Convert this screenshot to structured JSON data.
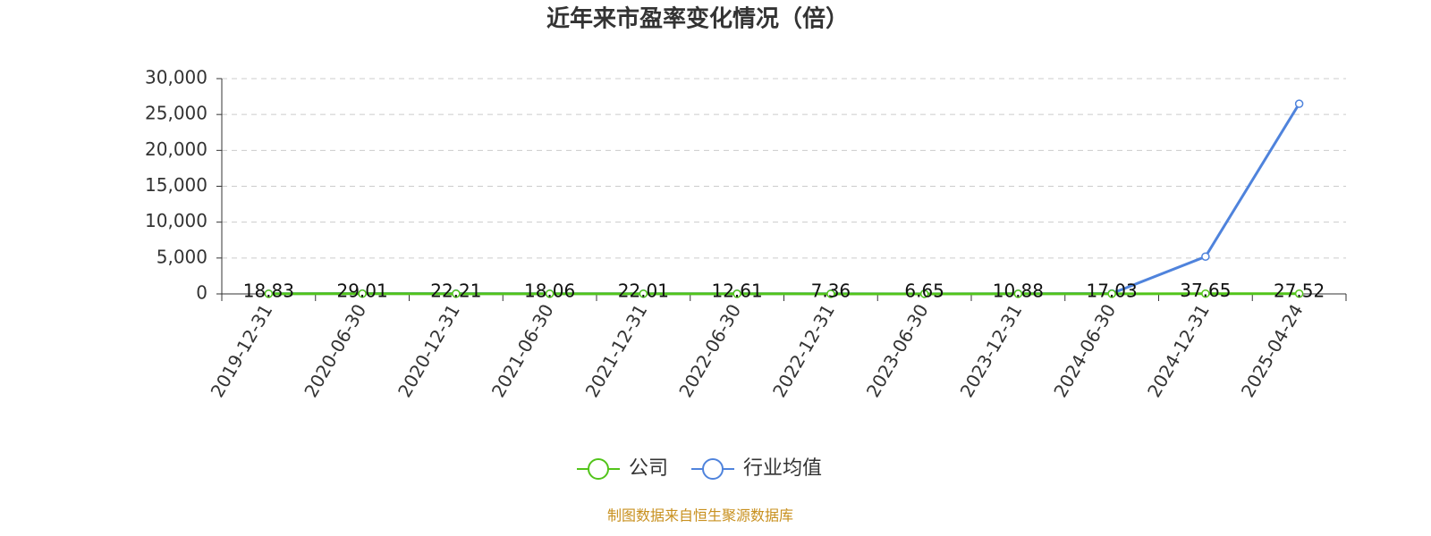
{
  "chart_data": {
    "type": "line",
    "title": "近年来市盈率变化情况（倍）",
    "categories": [
      "2019-12-31",
      "2020-06-30",
      "2020-12-31",
      "2021-06-30",
      "2021-12-31",
      "2022-06-30",
      "2022-12-31",
      "2023-06-30",
      "2023-12-31",
      "2024-06-30",
      "2024-12-31",
      "2025-04-24"
    ],
    "series": [
      {
        "name": "公司",
        "color": "#52c41a",
        "values": [
          18.83,
          29.01,
          22.21,
          18.06,
          22.01,
          12.61,
          7.36,
          6.65,
          10.88,
          17.03,
          37.65,
          27.52
        ]
      },
      {
        "name": "行业均值",
        "color": "#4f83dc",
        "values": [
          35,
          45,
          40,
          32,
          35,
          28,
          24,
          22,
          26,
          60,
          5200,
          26500
        ]
      }
    ],
    "ylim": [
      0,
      30000
    ],
    "yticks": [
      0,
      {
        "value": 5000,
        "label": "5,000"
      },
      {
        "value": 10000,
        "label": "10,000"
      },
      {
        "value": 15000,
        "label": "15,000"
      },
      {
        "value": 20000,
        "label": "20,000"
      },
      {
        "value": 25000,
        "label": "25,000"
      },
      {
        "value": 30000,
        "label": "30,000"
      }
    ],
    "grid": true,
    "legend": "bottom",
    "source": "制图数据来自恒生聚源数据库"
  }
}
